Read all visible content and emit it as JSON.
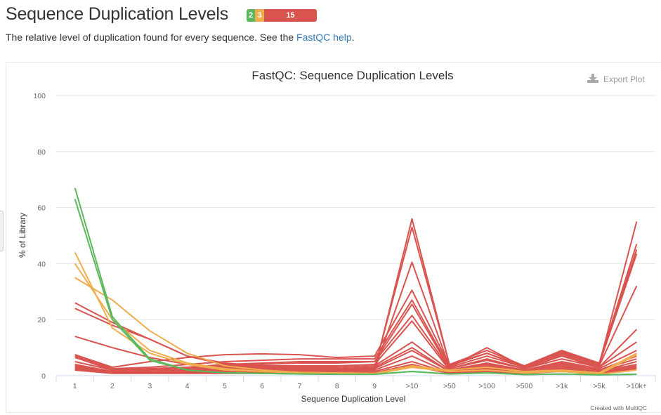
{
  "header": {
    "title": "Sequence Duplication Levels",
    "status": [
      {
        "count": "2",
        "color": "#5cb85c"
      },
      {
        "count": "3",
        "color": "#f0ad4e"
      },
      {
        "count": "15",
        "color": "#d9534f"
      }
    ]
  },
  "description": {
    "text": "The relative level of duplication found for every sequence. See the ",
    "link": "FastQC help",
    "suffix": "."
  },
  "toolbar": {
    "export_label": "Export Plot",
    "export_icon": "download-icon"
  },
  "credits": "Created with MultiQC",
  "chart_data": {
    "type": "line",
    "title": "FastQC: Sequence Duplication Levels",
    "xlabel": "Sequence Duplication Level",
    "ylabel": "% of Library",
    "ylim": [
      0,
      100
    ],
    "yticks": [
      0,
      20,
      40,
      60,
      80,
      100
    ],
    "grid": true,
    "categories": [
      "1",
      "2",
      "3",
      "4",
      "5",
      "6",
      "7",
      "8",
      "9",
      ">10",
      ">50",
      ">100",
      ">500",
      ">1k",
      ">5k",
      ">10k+"
    ],
    "colors": {
      "pass": "#5cb85c",
      "warn": "#f0ad4e",
      "fail": "#d9534f"
    },
    "series": [
      {
        "status": "pass",
        "values": [
          67,
          21,
          6,
          2,
          1,
          0.8,
          0.6,
          0.5,
          0.5,
          1.5,
          0.6,
          1,
          0.4,
          0.6,
          0.3,
          0.5
        ]
      },
      {
        "status": "pass",
        "values": [
          63,
          20,
          5.5,
          2,
          1,
          0.8,
          0.6,
          0.5,
          0.5,
          1.5,
          0.6,
          1,
          0.4,
          0.6,
          0.3,
          0.5
        ]
      },
      {
        "status": "warn",
        "values": [
          44,
          17,
          8,
          4,
          2,
          1.5,
          1,
          0.8,
          0.6,
          3,
          1.5,
          2,
          1,
          1.5,
          0.5,
          2
        ]
      },
      {
        "status": "warn",
        "values": [
          40,
          20,
          9,
          4.5,
          2.5,
          1.5,
          1,
          0.8,
          0.6,
          3,
          1.5,
          2,
          1,
          1.5,
          0.5,
          7.5
        ]
      },
      {
        "status": "warn",
        "values": [
          35,
          27,
          16,
          8,
          3.5,
          2,
          1.2,
          1,
          0.8,
          3.5,
          2,
          3,
          1.5,
          2,
          1,
          8
        ]
      },
      {
        "status": "fail",
        "values": [
          26,
          19,
          13,
          7,
          4,
          3,
          2.5,
          2,
          2,
          56,
          4,
          8,
          3,
          8,
          4,
          55
        ]
      },
      {
        "status": "fail",
        "values": [
          24,
          18,
          13,
          7,
          4.5,
          3.5,
          3,
          2.5,
          2.5,
          53,
          4,
          9,
          3.5,
          9,
          4.5,
          47
        ]
      },
      {
        "status": "fail",
        "values": [
          14,
          10,
          6.5,
          4,
          3,
          2.5,
          2,
          2,
          2,
          40.5,
          3,
          10,
          3,
          9,
          4,
          45
        ]
      },
      {
        "status": "fail",
        "values": [
          7.5,
          3,
          5,
          6.5,
          7.5,
          7.8,
          7.5,
          6.5,
          7,
          30.5,
          3.5,
          8,
          3.5,
          8.5,
          4,
          43.5
        ]
      },
      {
        "status": "fail",
        "values": [
          7,
          2.5,
          3,
          4,
          5,
          5.5,
          6,
          6,
          6,
          27,
          3,
          7,
          3,
          7.5,
          3.5,
          32
        ]
      },
      {
        "status": "fail",
        "values": [
          6.5,
          2,
          2.5,
          3,
          4,
          4.5,
          5,
          5,
          5,
          25.5,
          2.5,
          6,
          2.5,
          7,
          3,
          16.5
        ]
      },
      {
        "status": "fail",
        "values": [
          5,
          2,
          2.5,
          3,
          3.5,
          4,
          4.5,
          4.5,
          5,
          21.5,
          2.5,
          5.5,
          2.5,
          6,
          3,
          12
        ]
      },
      {
        "status": "fail",
        "values": [
          4,
          1.5,
          2,
          2.5,
          3,
          3.5,
          3.5,
          3.5,
          4,
          19.5,
          2,
          4.5,
          2,
          5,
          2.5,
          9
        ]
      },
      {
        "status": "fail",
        "values": [
          3.5,
          1.5,
          2,
          2.5,
          3,
          3,
          3,
          3,
          3.5,
          12,
          2,
          4,
          2,
          4.5,
          2,
          7
        ]
      },
      {
        "status": "fail",
        "values": [
          3,
          1.5,
          1.5,
          2,
          2.5,
          2.5,
          2.5,
          2.5,
          3,
          10,
          1.5,
          3.5,
          1.5,
          4,
          2,
          6
        ]
      },
      {
        "status": "fail",
        "values": [
          3,
          1,
          1.5,
          2,
          2,
          2,
          2,
          2,
          2.5,
          9,
          1.5,
          3,
          1.5,
          3.5,
          1.5,
          5
        ]
      },
      {
        "status": "fail",
        "values": [
          2.5,
          1,
          1,
          1.5,
          1.5,
          1.5,
          1.5,
          1.5,
          2,
          7,
          1,
          2.5,
          1,
          3,
          1.5,
          4
        ]
      },
      {
        "status": "fail",
        "values": [
          2.5,
          1,
          1,
          1,
          1,
          1,
          1,
          1,
          1.5,
          5,
          1,
          2,
          1,
          2.5,
          1,
          3.5
        ]
      },
      {
        "status": "fail",
        "values": [
          2,
          1,
          1,
          1,
          1,
          1,
          1,
          1,
          1,
          4,
          1,
          2,
          1,
          2,
          1,
          3
        ]
      },
      {
        "status": "fail",
        "values": [
          2,
          0.8,
          0.8,
          0.8,
          0.8,
          0.8,
          0.8,
          0.8,
          1,
          3.5,
          0.8,
          1.5,
          0.8,
          1.5,
          0.8,
          2.5
        ]
      }
    ]
  }
}
